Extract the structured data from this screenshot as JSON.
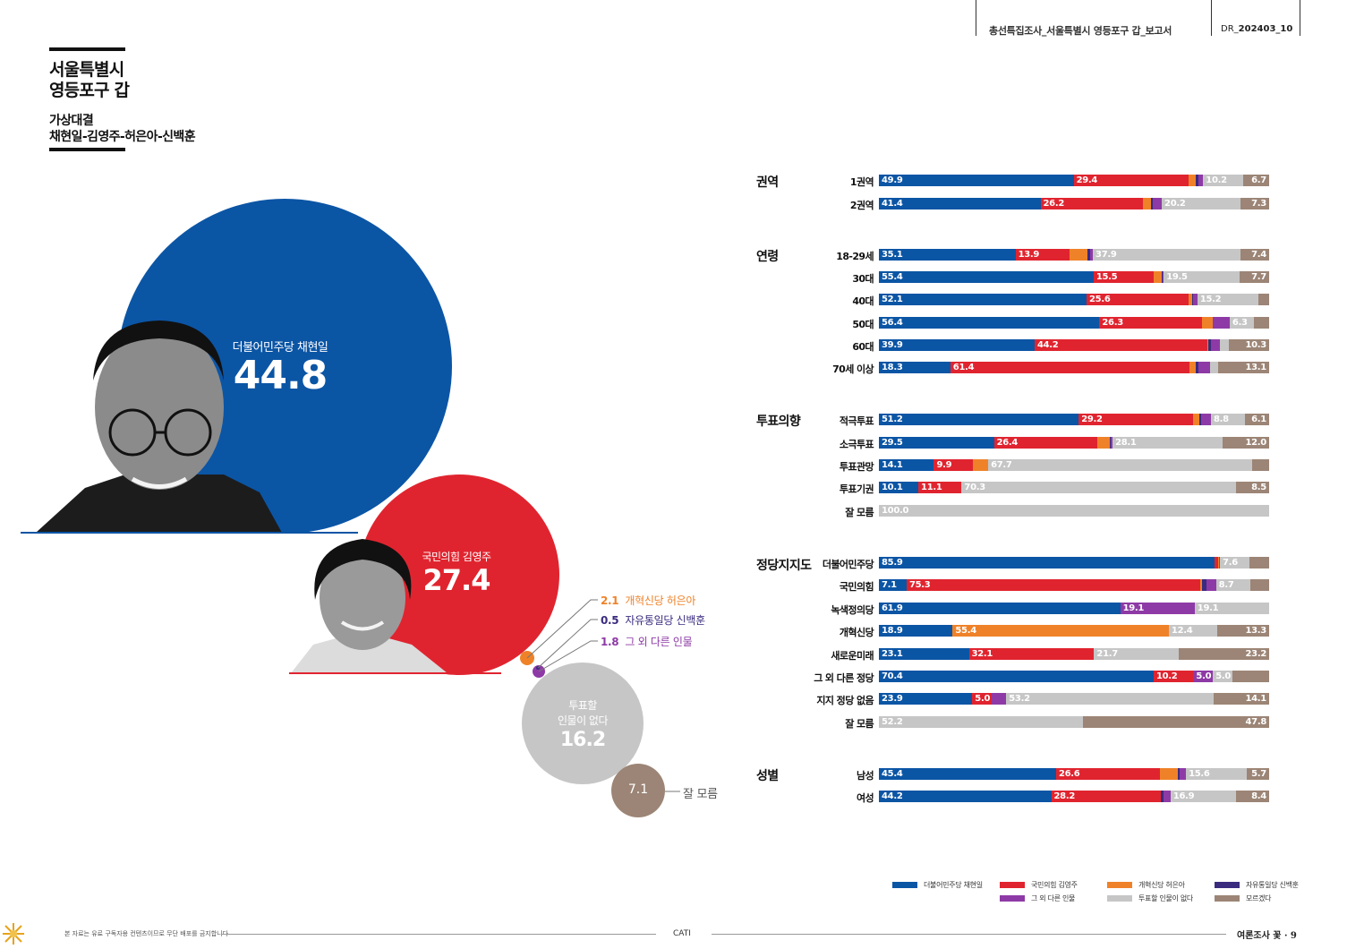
{
  "header": {
    "title": "총선특집조사_서울특별시 영등포구 갑_보고서",
    "code_prefix": "DR_",
    "code": "202403_10"
  },
  "title": {
    "line1": "서울특별시",
    "line2": "영등포구 갑"
  },
  "subtitle": {
    "line1": "가상대결",
    "line2": "채현일-김영주-허은아-신백훈"
  },
  "colors": {
    "dem": "#0b55a5",
    "ppp": "#e0242f",
    "reform": "#ef8228",
    "unity": "#3a2b7f",
    "other": "#8e3aa6",
    "none": "#c6c6c6",
    "dunno": "#9c8576"
  },
  "bubbles": {
    "dem": {
      "name": "더불어민주당 채현일",
      "value": "44.8"
    },
    "ppp": {
      "name": "국민의힘 김영주",
      "value": "27.4"
    },
    "none": {
      "name1": "투표할",
      "name2": "인물이 없다",
      "value": "16.2"
    },
    "dunno": {
      "value": "7.1",
      "label": "잘 모름"
    }
  },
  "callouts": [
    {
      "value": "2.1",
      "label": "개혁신당 허은아"
    },
    {
      "value": "0.5",
      "label": "자유통일당 신백훈"
    },
    {
      "value": "1.8",
      "label": "그 외 다른 인물"
    }
  ],
  "chart_data": {
    "type": "bar",
    "orientation": "horizontal-stacked-100",
    "series_names": [
      "더불어민주당 채현일",
      "국민의힘 김영주",
      "개혁신당 허은아",
      "자유통일당 신백훈",
      "그 외 다른 인물",
      "투표할 인물이 없다",
      "모르겠다"
    ],
    "overall": [
      44.8,
      27.4,
      2.1,
      0.5,
      1.8,
      16.2,
      7.1
    ],
    "groups": [
      {
        "name": "권역",
        "rows": [
          {
            "label": "1권역",
            "values": [
              49.9,
              29.4,
              1.9,
              0.6,
              1.3,
              10.2,
              6.7
            ]
          },
          {
            "label": "2권역",
            "values": [
              41.4,
              26.2,
              2.2,
              0.4,
              2.3,
              20.2,
              7.3
            ]
          }
        ]
      },
      {
        "name": "연령",
        "rows": [
          {
            "label": "18-29세",
            "values": [
              35.1,
              13.9,
              4.6,
              0.6,
              0.8,
              37.9,
              7.4
            ]
          },
          {
            "label": "30대",
            "values": [
              55.4,
              15.5,
              2.0,
              0.3,
              0.3,
              19.5,
              7.7
            ]
          },
          {
            "label": "40대",
            "values": [
              52.1,
              25.6,
              1.0,
              0.2,
              1.0,
              15.2,
              2.8
            ]
          },
          {
            "label": "50대",
            "values": [
              56.4,
              26.3,
              2.6,
              0.2,
              4.2,
              6.3,
              3.8
            ]
          },
          {
            "label": "60대",
            "values": [
              39.9,
              44.2,
              0.3,
              0.8,
              2.1,
              2.4,
              10.3
            ]
          },
          {
            "label": "70세 이상",
            "values": [
              18.3,
              61.4,
              1.4,
              0.8,
              3.0,
              2.0,
              13.1
            ]
          }
        ]
      },
      {
        "name": "투표의향",
        "rows": [
          {
            "label": "적극투표",
            "values": [
              51.2,
              29.2,
              1.7,
              0.5,
              2.5,
              8.8,
              6.1
            ]
          },
          {
            "label": "소극투표",
            "values": [
              29.5,
              26.4,
              3.2,
              0.4,
              0.4,
              28.1,
              12.0
            ]
          },
          {
            "label": "투표관망",
            "values": [
              14.1,
              9.9,
              4.0,
              0,
              0,
              67.7,
              4.3
            ]
          },
          {
            "label": "투표기권",
            "values": [
              10.1,
              11.1,
              0,
              0,
              0,
              70.3,
              8.5
            ]
          },
          {
            "label": "잘 모름",
            "values": [
              0,
              0,
              0,
              0,
              0,
              100.0,
              0
            ]
          }
        ]
      },
      {
        "name": "정당지지도",
        "rows": [
          {
            "label": "더불어민주당",
            "values": [
              85.9,
              1.0,
              0.3,
              0,
              0.2,
              7.6,
              5.0
            ]
          },
          {
            "label": "국민의힘",
            "values": [
              7.1,
              75.3,
              0.5,
              1.0,
              2.5,
              8.7,
              4.9
            ]
          },
          {
            "label": "녹색정의당",
            "values": [
              61.9,
              0,
              0,
              0,
              19.1,
              19.1,
              0
            ]
          },
          {
            "label": "개혁신당",
            "values": [
              18.9,
              0,
              55.4,
              0,
              0,
              12.4,
              13.3
            ]
          },
          {
            "label": "새로운미래",
            "values": [
              23.1,
              32.1,
              0,
              0,
              0,
              21.7,
              23.2
            ]
          },
          {
            "label": "그 외 다른 정당",
            "values": [
              70.4,
              10.2,
              0,
              0,
              5.0,
              5.0,
              9.4
            ]
          },
          {
            "label": "지지 정당 없음",
            "values": [
              23.9,
              5.0,
              0,
              0,
              3.7,
              53.2,
              14.1
            ]
          },
          {
            "label": "잘 모름",
            "values": [
              0,
              0,
              0,
              0,
              0,
              52.2,
              47.8
            ]
          }
        ]
      },
      {
        "name": "성별",
        "rows": [
          {
            "label": "남성",
            "values": [
              45.4,
              26.6,
              4.6,
              0.4,
              1.7,
              15.6,
              5.7
            ]
          },
          {
            "label": "여성",
            "values": [
              44.2,
              28.2,
              0,
              0.6,
              1.8,
              16.9,
              8.4
            ]
          }
        ]
      }
    ],
    "printed_labels": {
      "1권역": [
        "49.9",
        "29.4",
        "",
        "",
        "",
        "10.2",
        "6.7"
      ],
      "2권역": [
        "41.4",
        "26.2",
        "",
        "",
        "",
        "20.2",
        "7.3"
      ],
      "18-29세": [
        "35.1",
        "13.9",
        "",
        "",
        "",
        "37.9",
        "7.4"
      ],
      "30대": [
        "55.4",
        "15.5",
        "",
        "",
        "",
        "19.5",
        "7.7"
      ],
      "40대": [
        "52.1",
        "25.6",
        "",
        "",
        "",
        "15.2",
        ""
      ],
      "50대": [
        "56.4",
        "26.3",
        "",
        "",
        "",
        "6.3",
        ""
      ],
      "60대": [
        "39.9",
        "44.2",
        "",
        "",
        "",
        "",
        "10.3"
      ],
      "70세 이상": [
        "18.3",
        "61.4",
        "",
        "",
        "",
        "",
        "13.1"
      ],
      "적극투표": [
        "51.2",
        "29.2",
        "",
        "",
        "",
        "8.8",
        "6.1"
      ],
      "소극투표": [
        "29.5",
        "26.4",
        "",
        "",
        "",
        "28.1",
        "12.0"
      ],
      "투표관망": [
        "14.1",
        "9.9",
        "",
        "",
        "",
        "67.7",
        ""
      ],
      "투표기권": [
        "10.1",
        "11.1",
        "",
        "",
        "",
        "70.3",
        "8.5"
      ],
      "잘 모름a": [
        "",
        "",
        "",
        "",
        "",
        "100.0",
        ""
      ],
      "더불어민주당": [
        "85.9",
        "",
        "",
        "",
        "",
        "7.6",
        ""
      ],
      "국민의힘": [
        "7.1",
        "75.3",
        "",
        "",
        "",
        "8.7",
        ""
      ],
      "녹색정의당": [
        "61.9",
        "",
        "",
        "",
        "19.1",
        "19.1",
        ""
      ],
      "개혁신당": [
        "18.9",
        "",
        "55.4",
        "",
        "",
        "12.4",
        "13.3"
      ],
      "새로운미래": [
        "23.1",
        "32.1",
        "",
        "",
        "",
        "21.7",
        "23.2"
      ],
      "그 외 다른 정당": [
        "70.4",
        "10.2",
        "",
        "",
        "5.0",
        "5.0",
        ""
      ],
      "지지 정당 없음": [
        "23.9",
        "5.0",
        "",
        "",
        "",
        "53.2",
        "14.1"
      ],
      "잘 모름b": [
        "",
        "",
        "",
        "",
        "",
        "52.2",
        "47.8"
      ],
      "남성": [
        "45.4",
        "26.6",
        "",
        "",
        "",
        "15.6",
        "5.7"
      ],
      "여성": [
        "44.2",
        "28.2",
        "",
        "",
        "",
        "16.9",
        "8.4"
      ]
    }
  },
  "legend": [
    {
      "name": "더불어민주당 채현일",
      "color_key": "dem"
    },
    {
      "name": "국민의힘 김영주",
      "color_key": "ppp"
    },
    {
      "name": "개혁신당 허은아",
      "color_key": "reform"
    },
    {
      "name": "자유통일당 신백훈",
      "color_key": "unity"
    },
    {
      "name": "그 외 다른 인물",
      "color_key": "other"
    },
    {
      "name": "투표할 인물이 없다",
      "color_key": "none"
    },
    {
      "name": "모르겠다",
      "color_key": "dunno"
    }
  ],
  "footer": {
    "note": "본 자료는 유료 구독자용 컨텐츠이므로 무단 배포를 금지합니다",
    "method": "CATI",
    "page": "여론조사 꽃 · 9"
  }
}
